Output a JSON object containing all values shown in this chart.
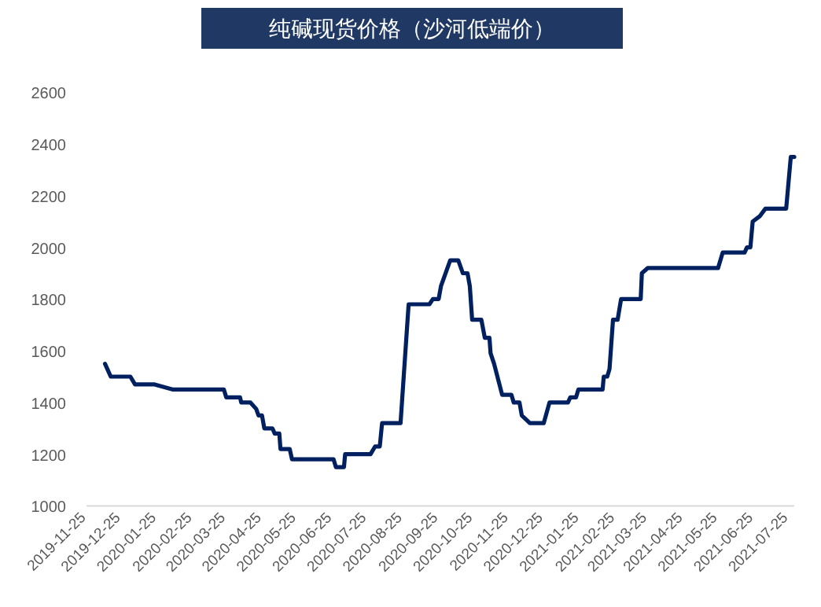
{
  "chart_data": {
    "type": "line",
    "title": "纯碱现货价格（沙河低端价）",
    "x": [
      "2019-12-11",
      "2019-12-16",
      "2020-01-02",
      "2020-01-06",
      "2020-01-23",
      "2020-02-08",
      "2020-03-23",
      "2020-03-25",
      "2020-04-06",
      "2020-04-07",
      "2020-04-15",
      "2020-04-20",
      "2020-04-22",
      "2020-04-25",
      "2020-04-27",
      "2020-05-04",
      "2020-05-06",
      "2020-05-10",
      "2020-05-11",
      "2020-05-19",
      "2020-05-21",
      "2020-06-26",
      "2020-06-28",
      "2020-07-05",
      "2020-07-06",
      "2020-07-28",
      "2020-08-01",
      "2020-08-05",
      "2020-08-07",
      "2020-08-23",
      "2020-08-30",
      "2020-09-17",
      "2020-09-20",
      "2020-09-25",
      "2020-09-27",
      "2020-10-05",
      "2020-10-12",
      "2020-10-16",
      "2020-10-20",
      "2020-10-22",
      "2020-10-24",
      "2020-11-01",
      "2020-11-04",
      "2020-11-08",
      "2020-11-09",
      "2020-11-12",
      "2020-11-19",
      "2020-11-27",
      "2020-11-29",
      "2020-12-04",
      "2020-12-06",
      "2020-12-13",
      "2020-12-25",
      "2020-12-30",
      "2021-01-15",
      "2021-01-17",
      "2021-01-22",
      "2021-01-24",
      "2021-02-14",
      "2021-02-15",
      "2021-02-18",
      "2021-02-20",
      "2021-02-23",
      "2021-02-27",
      "2021-03-02",
      "2021-03-19",
      "2021-03-20",
      "2021-03-25",
      "2021-05-25",
      "2021-05-29",
      "2021-06-17",
      "2021-06-19",
      "2021-06-22",
      "2021-06-24",
      "2021-06-30",
      "2021-07-05",
      "2021-07-23",
      "2021-07-27",
      "2021-07-30"
    ],
    "series": [
      {
        "color": "#002060",
        "values": [
          1550,
          1500,
          1500,
          1470,
          1470,
          1450,
          1450,
          1420,
          1420,
          1400,
          1400,
          1375,
          1350,
          1350,
          1300,
          1300,
          1280,
          1280,
          1220,
          1220,
          1180,
          1180,
          1150,
          1150,
          1200,
          1200,
          1230,
          1230,
          1320,
          1320,
          1780,
          1780,
          1800,
          1800,
          1850,
          1950,
          1950,
          1900,
          1900,
          1850,
          1720,
          1720,
          1650,
          1650,
          1590,
          1550,
          1430,
          1430,
          1400,
          1400,
          1350,
          1320,
          1320,
          1400,
          1400,
          1420,
          1420,
          1450,
          1450,
          1500,
          1500,
          1530,
          1720,
          1720,
          1800,
          1800,
          1900,
          1920,
          1920,
          1980,
          1980,
          2000,
          2000,
          2100,
          2120,
          2150,
          2150,
          2350,
          2350
        ]
      }
    ],
    "xlim": [
      "2019-11-25",
      "2021-07-30"
    ],
    "xticks": [
      "2019-11-25",
      "2019-12-25",
      "2020-01-25",
      "2020-02-25",
      "2020-03-25",
      "2020-04-25",
      "2020-05-25",
      "2020-06-25",
      "2020-07-25",
      "2020-08-25",
      "2020-09-25",
      "2020-10-25",
      "2020-11-25",
      "2020-12-25",
      "2021-01-25",
      "2021-02-25",
      "2021-03-25",
      "2021-04-25",
      "2021-05-25",
      "2021-06-25",
      "2021-07-25"
    ],
    "ylim": [
      1000,
      2600
    ],
    "yticks": [
      1000,
      1200,
      1400,
      1600,
      1800,
      2000,
      2200,
      2400,
      2600
    ],
    "grid": false,
    "marker": "none",
    "line_style": "solid"
  }
}
